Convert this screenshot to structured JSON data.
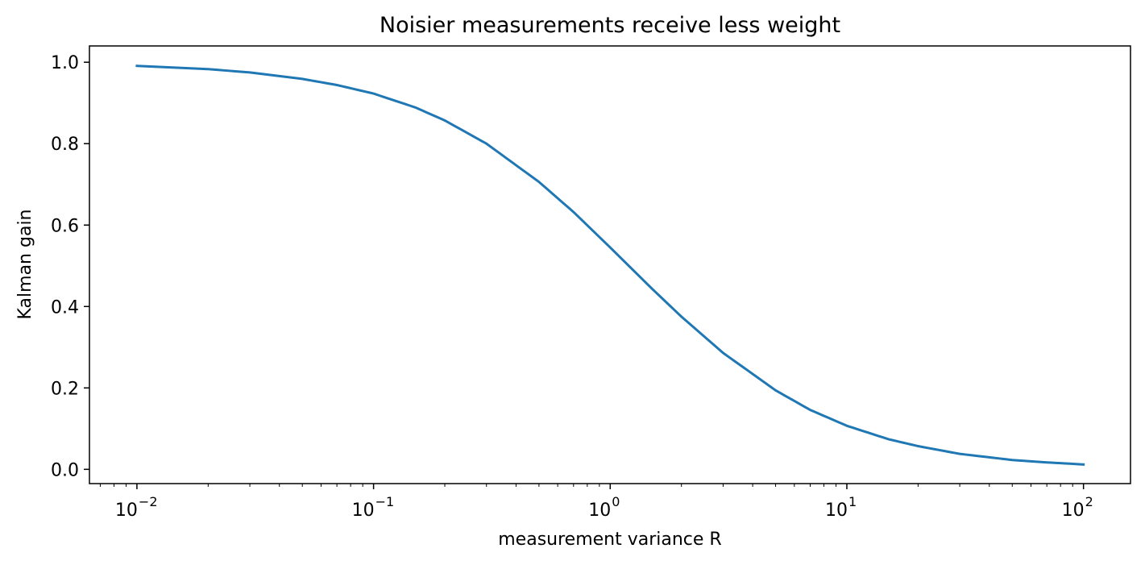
{
  "chart_data": {
    "type": "line",
    "title": "Noisier measurements receive less weight",
    "xlabel": "measurement variance R",
    "ylabel": "Kalman gain",
    "xscale": "log",
    "xlim": [
      0.0063,
      158
    ],
    "ylim": [
      -0.035,
      1.04
    ],
    "x_ticks": [
      {
        "base": "10",
        "exp": "−2",
        "value": 0.01
      },
      {
        "base": "10",
        "exp": "−1",
        "value": 0.1
      },
      {
        "base": "10",
        "exp": "0",
        "value": 1
      },
      {
        "base": "10",
        "exp": "1",
        "value": 10
      },
      {
        "base": "10",
        "exp": "2",
        "value": 100
      }
    ],
    "y_ticks": [
      "0.0",
      "0.2",
      "0.4",
      "0.6",
      "0.8",
      "1.0"
    ],
    "grid": false,
    "series": [
      {
        "color": "#1f77b4",
        "x": [
          0.01,
          0.02,
          0.03,
          0.05,
          0.07,
          0.1,
          0.15,
          0.2,
          0.3,
          0.5,
          0.7,
          1,
          1.5,
          2,
          3,
          5,
          7,
          10,
          15,
          20,
          30,
          50,
          70,
          100
        ],
        "y": [
          0.991,
          0.983,
          0.975,
          0.959,
          0.944,
          0.923,
          0.889,
          0.857,
          0.8,
          0.706,
          0.632,
          0.545,
          0.444,
          0.375,
          0.286,
          0.194,
          0.146,
          0.107,
          0.074,
          0.057,
          0.038,
          0.023,
          0.017,
          0.012
        ]
      }
    ]
  }
}
